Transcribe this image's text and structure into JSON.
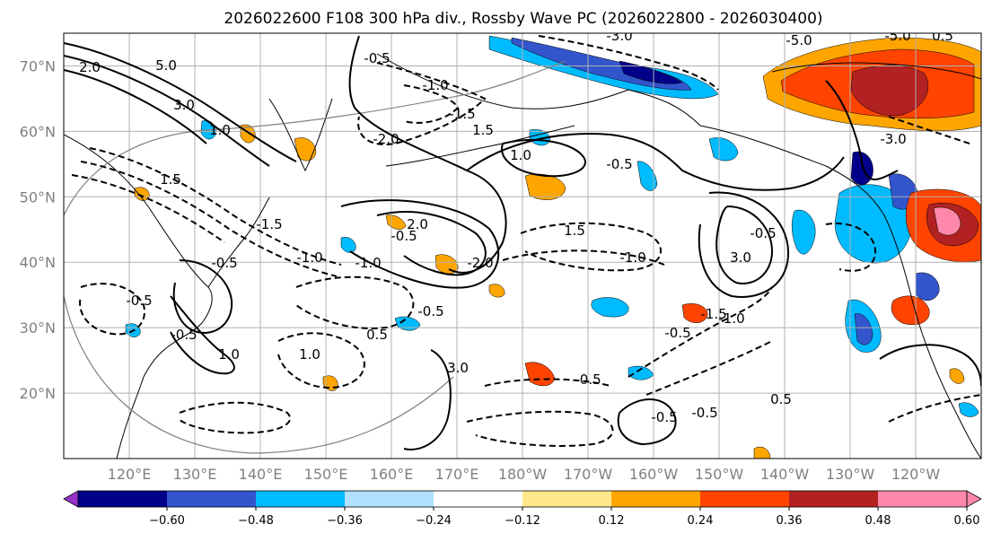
{
  "title": "2026022600 F108 300 hPa div., Rossby Wave PC (2026022800 - 2026030400)",
  "map": {
    "type": "map",
    "projection": "PlateCarree",
    "lat_range": [
      10,
      75
    ],
    "lon_range_deg_east": [
      110,
      250
    ],
    "lat_ticks": [
      "70°N",
      "60°N",
      "50°N",
      "40°N",
      "30°N",
      "20°N"
    ],
    "lon_ticks": [
      "120°E",
      "130°E",
      "140°E",
      "150°E",
      "160°E",
      "170°E",
      "180°W",
      "170°W",
      "160°W",
      "150°W",
      "140°W",
      "130°W",
      "120°W"
    ],
    "variable": "300 hPa divergence (shaded)",
    "overlay": "Rossby wave PC (contours, dashed negative)",
    "contour_labels": [
      "2.0",
      "5.0",
      "3.0",
      "1.0",
      "1.5",
      "-0.5",
      "-1.0",
      "-1.5",
      "-2.0",
      "-3.0",
      "-5.0",
      "0.5",
      "2.0",
      "1.5",
      "1.0",
      "-0.5",
      "-1.0",
      "-2.0",
      "3.0",
      "-0.5",
      "1.5",
      "-1.0",
      "-0.5",
      "-0.5",
      "-0.5",
      "0.5",
      "-0.5",
      "-0.5",
      "0.5",
      "-3.0",
      "-5.0",
      "-0.5",
      "-0.5",
      "1.0",
      "-0.5",
      "-1.5",
      "-1.0",
      "-0.5",
      "1.0",
      "3.0",
      "-1.5",
      "-1.0"
    ]
  },
  "colorbar": {
    "ticks": [
      "−0.60",
      "−0.48",
      "−0.36",
      "−0.24",
      "−0.12",
      "0.12",
      "0.24",
      "0.36",
      "0.48",
      "0.60"
    ],
    "colors": [
      "#9933cc",
      "#000088",
      "#3355cc",
      "#00bbff",
      "#b0e2ff",
      "#ffffff",
      "#ffe88a",
      "#ffa500",
      "#ff4400",
      "#b22222",
      "#ff88aa",
      "#ff88aa"
    ],
    "extend": "both"
  },
  "colors": {
    "neg_deep": "#000088",
    "neg_mid": "#3355cc",
    "neg_light": "#00bbff",
    "neg_pale": "#b0e2ff",
    "pos_pale": "#ffe88a",
    "pos_light": "#ffa500",
    "pos_mid": "#ff4400",
    "pos_deep": "#b22222",
    "pos_max": "#ff88aa"
  }
}
